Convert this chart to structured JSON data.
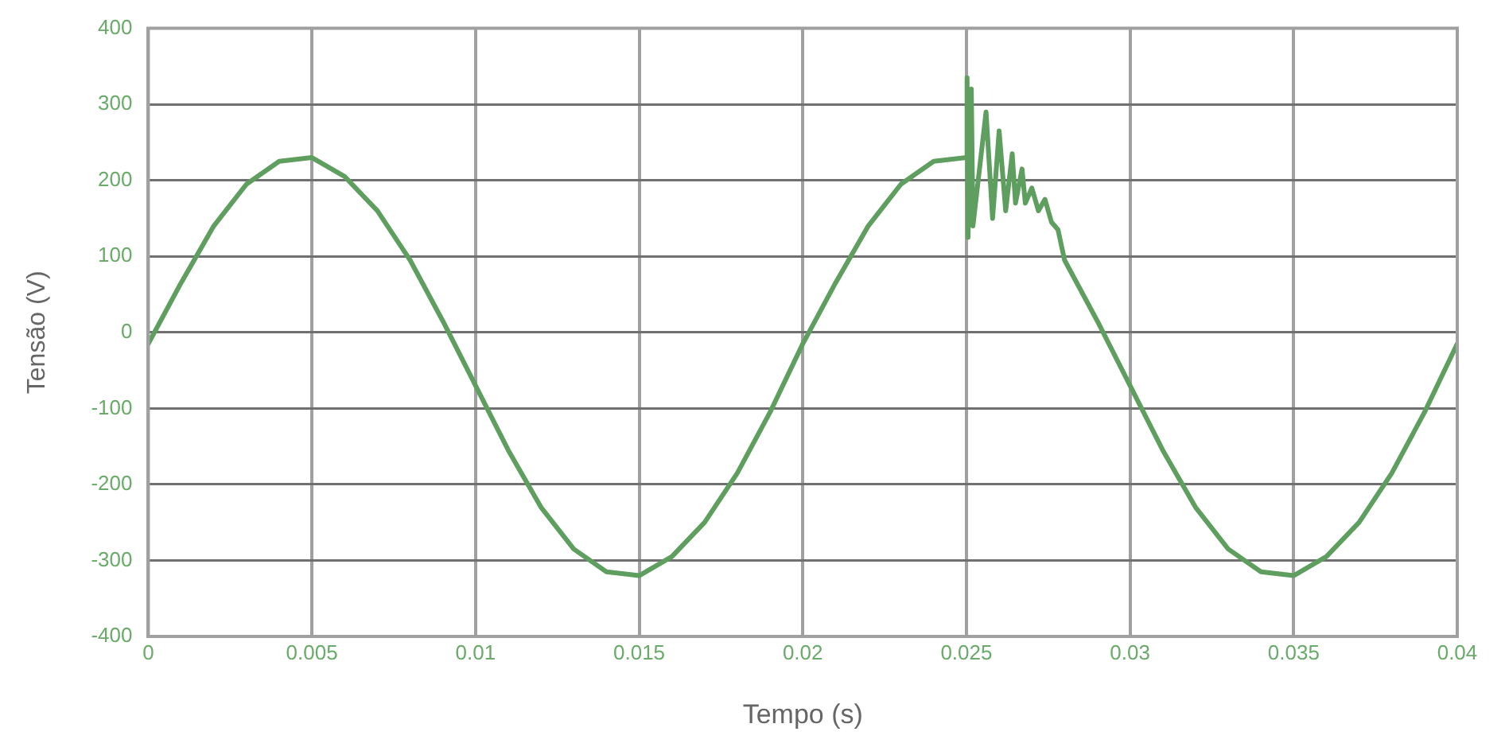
{
  "chart_data": {
    "type": "line",
    "xlabel": "Tempo (s)",
    "ylabel": "Tensão (V)",
    "xlim": [
      0,
      0.04
    ],
    "xticks": [
      0,
      0.005,
      0.01,
      0.015,
      0.02,
      0.025,
      0.03,
      0.035,
      0.04
    ],
    "ylim": [
      -400,
      400
    ],
    "yticks": [
      -400,
      -300,
      -200,
      -100,
      0,
      100,
      200,
      300,
      400
    ],
    "grid": true,
    "marker": "none",
    "line_style": "solid",
    "series": [
      {
        "color": "#5e9e5e",
        "x": [
          0,
          0.001,
          0.002,
          0.003,
          0.004,
          0.005,
          0.006,
          0.007,
          0.008,
          0.009,
          0.01,
          0.011,
          0.012,
          0.013,
          0.014,
          0.015,
          0.016,
          0.017,
          0.018,
          0.019,
          0.02,
          0.021,
          0.022,
          0.023,
          0.024,
          0.025,
          0.02502,
          0.02505,
          0.02515,
          0.0252,
          0.0256,
          0.0258,
          0.026,
          0.0262,
          0.0264,
          0.0265,
          0.0267,
          0.0268,
          0.027,
          0.0272,
          0.0274,
          0.0276,
          0.0278,
          0.028,
          0.029,
          0.03,
          0.031,
          0.032,
          0.033,
          0.034,
          0.035,
          0.036,
          0.037,
          0.038,
          0.039,
          0.04
        ],
        "values": [
          -15,
          65,
          140,
          195,
          225,
          230,
          205,
          160,
          95,
          15,
          -70,
          -155,
          -230,
          -285,
          -315,
          -320,
          -295,
          -250,
          -185,
          -105,
          -15,
          65,
          140,
          195,
          225,
          230,
          335,
          125,
          320,
          140,
          290,
          150,
          265,
          160,
          235,
          170,
          215,
          170,
          190,
          160,
          175,
          145,
          135,
          95,
          15,
          -70,
          -155,
          -230,
          -285,
          -315,
          -320,
          -295,
          -250,
          -185,
          -105,
          -15
        ]
      }
    ]
  }
}
